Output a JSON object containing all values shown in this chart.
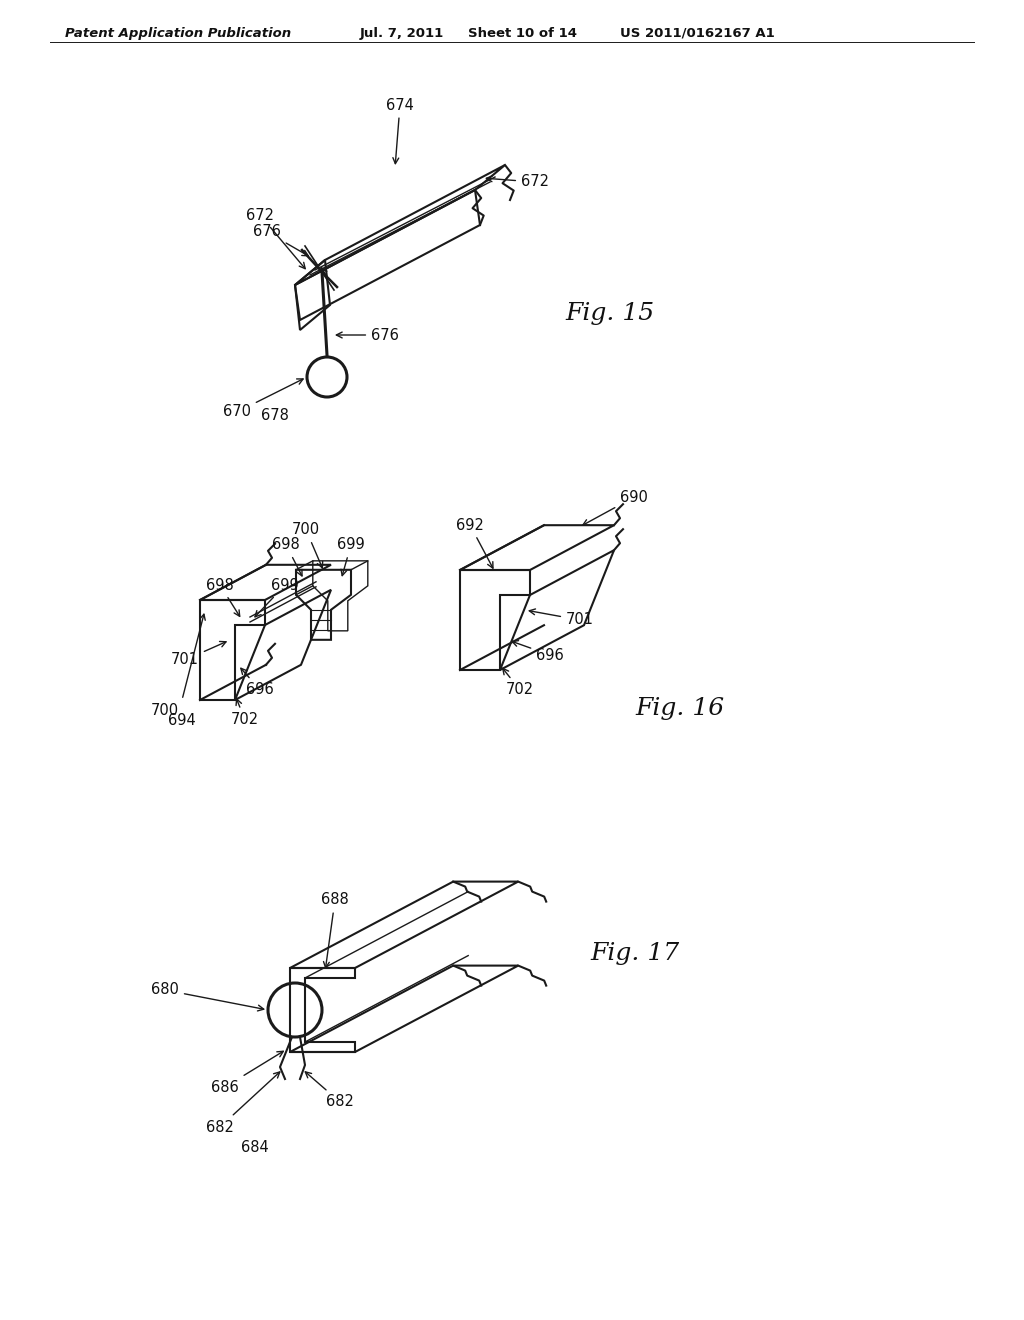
{
  "bg_color": "#ffffff",
  "header_left": "Patent Application Publication",
  "header_date": "Jul. 7, 2011",
  "header_sheet": "Sheet 10 of 14",
  "header_patent": "US 2011/0162167 A1",
  "fig15_label": "Fig. 15",
  "fig16_label": "Fig. 16",
  "fig17_label": "Fig. 17",
  "line_color": "#1a1a1a",
  "text_color": "#111111",
  "label_fontsize": 10.5,
  "fig_label_fontsize": 18,
  "header_fontsize": 9.5
}
